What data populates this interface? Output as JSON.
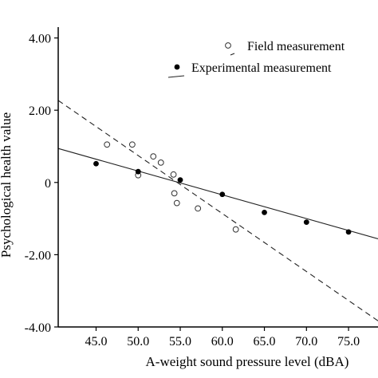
{
  "chart_data": {
    "type": "scatter",
    "title": "",
    "xlabel": "A-weight sound pressure level (dBA)",
    "ylabel": "Psychological health value",
    "xlim": [
      40.5,
      78.5
    ],
    "ylim": [
      -4.0,
      4.3
    ],
    "x_ticks": [
      45,
      50,
      55,
      60,
      65,
      70,
      75
    ],
    "x_tick_labels": [
      "45.0",
      "50.0",
      "55.0",
      "60.0",
      "65.0",
      "70.0",
      "75.0"
    ],
    "y_ticks": [
      4,
      2,
      0,
      -2,
      -4
    ],
    "y_tick_labels": [
      "4.00",
      "2.00",
      "0",
      "-2.00",
      "-4.00"
    ],
    "grid": false,
    "legend_position": "top-right",
    "legend": [
      {
        "label": "Field measurement",
        "symbol": "open-circle"
      },
      {
        "label": "",
        "symbol": "dashed-line"
      },
      {
        "label": "Experimental measurement",
        "symbol": "filled-circle"
      },
      {
        "label": "",
        "symbol": "solid-line"
      }
    ],
    "series": [
      {
        "name": "Field measurement",
        "marker": "open-circle",
        "points": [
          [
            46.3,
            1.05
          ],
          [
            49.3,
            1.05
          ],
          [
            50.0,
            0.2
          ],
          [
            51.8,
            0.72
          ],
          [
            52.7,
            0.55
          ],
          [
            54.2,
            0.22
          ],
          [
            54.3,
            -0.3
          ],
          [
            54.6,
            -0.57
          ],
          [
            57.1,
            -0.72
          ],
          [
            61.6,
            -1.3
          ]
        ]
      },
      {
        "name": "Experimental measurement",
        "marker": "filled-circle",
        "points": [
          [
            45.0,
            0.52
          ],
          [
            50.0,
            0.3
          ],
          [
            55.0,
            0.07
          ],
          [
            60.0,
            -0.33
          ],
          [
            65.0,
            -0.83
          ],
          [
            70.0,
            -1.1
          ],
          [
            75.0,
            -1.37
          ]
        ]
      }
    ],
    "fit_lines": [
      {
        "style": "dashed",
        "x": [
          40.5,
          78.5
        ],
        "y": [
          2.27,
          -3.83
        ]
      },
      {
        "style": "solid",
        "x": [
          40.5,
          78.5
        ],
        "y": [
          0.94,
          -1.56
        ]
      }
    ]
  }
}
